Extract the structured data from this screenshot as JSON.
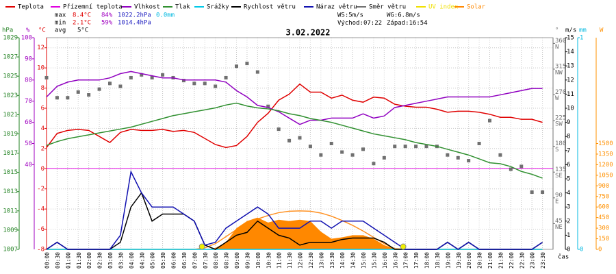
{
  "chart_data": {
    "type": "line",
    "title": "3.02.2022",
    "x_axis_label": "čas",
    "categories": [
      "00:00",
      "00:30",
      "01:00",
      "01:30",
      "02:00",
      "02:30",
      "03:00",
      "03:30",
      "04:00",
      "04:30",
      "05:00",
      "05:30",
      "06:00",
      "06:30",
      "07:00",
      "07:30",
      "08:00",
      "08:30",
      "09:00",
      "09:30",
      "10:00",
      "10:30",
      "11:00",
      "11:30",
      "12:00",
      "12:30",
      "13:00",
      "13:30",
      "14:00",
      "14:30",
      "15:00",
      "15:30",
      "16:00",
      "16:30",
      "17:00",
      "17:30",
      "18:00",
      "18:30",
      "19:00",
      "19:30",
      "20:00",
      "20:30",
      "21:00",
      "21:30",
      "22:00",
      "22:30",
      "23:00",
      "23:30"
    ],
    "axes": {
      "press": {
        "unit": "hPa",
        "color": "#208020",
        "lim": [
          1007,
          1029
        ],
        "ticks": [
          1007,
          1009,
          1011,
          1013,
          1015,
          1017,
          1019,
          1021,
          1023,
          1025,
          1027,
          1029
        ]
      },
      "hum": {
        "unit": "%",
        "color": "#a000c0",
        "lim": [
          0,
          100
        ],
        "ticks": [
          40,
          50,
          60,
          70,
          80,
          90,
          100
        ]
      },
      "temp": {
        "unit": "°C",
        "color": "#e00000",
        "lim": [
          -8,
          13
        ],
        "ticks": [
          -8,
          -6,
          -4,
          -2,
          0,
          2,
          4,
          6,
          8,
          10,
          12
        ]
      },
      "dir": {
        "unit": "°",
        "color": "#707070",
        "lim": [
          0,
          370
        ],
        "ticks": [
          45,
          90,
          135,
          180,
          225,
          270,
          315,
          360
        ],
        "tick_names": [
          "NE",
          "E",
          "SE",
          "S",
          "SW",
          "W",
          "NW",
          "N"
        ]
      },
      "wind": {
        "unit": "m/s",
        "color": "#000000",
        "lim": [
          0,
          15
        ],
        "ticks": [
          0,
          1,
          2,
          3,
          4,
          5,
          6,
          7,
          8,
          9,
          10,
          11,
          12,
          13,
          14,
          15
        ]
      },
      "mm": {
        "unit": "mm",
        "color": "#00b8e0",
        "lim": [
          0,
          1
        ],
        "ticks": [
          0,
          1
        ]
      },
      "solar": {
        "unit": "W",
        "color": "#ff9000",
        "lim": [
          0,
          3000
        ],
        "ticks": [
          0,
          150,
          300,
          450,
          600,
          750,
          900,
          1050,
          1200,
          1350,
          1500
        ]
      }
    },
    "zero_line": {
      "value": 0,
      "axis": "temp",
      "color": "#e000e0"
    },
    "grid": true,
    "series": [
      {
        "name": "Teplota",
        "color": "#e00000",
        "axis": "temp",
        "style": "line",
        "values": [
          2.1,
          3.5,
          3.8,
          3.9,
          3.8,
          3.2,
          2.6,
          3.6,
          3.9,
          3.8,
          3.8,
          3.9,
          3.7,
          3.8,
          3.6,
          3.0,
          2.4,
          2.1,
          2.3,
          3.2,
          4.6,
          5.5,
          6.8,
          7.4,
          8.4,
          7.6,
          7.6,
          7.0,
          7.3,
          6.8,
          6.6,
          7.1,
          7.0,
          6.4,
          6.2,
          6.1,
          6.1,
          5.9,
          5.6,
          5.7,
          5.7,
          5.6,
          5.4,
          5.1,
          5.1,
          4.9,
          4.9,
          4.6
        ]
      },
      {
        "name": "Přízemní teplota",
        "color": "#e000e0"
      },
      {
        "name": "Vlhkost",
        "color": "#9000c0",
        "axis": "hum",
        "style": "line",
        "values": [
          72,
          77,
          79,
          80,
          80,
          80,
          81,
          83,
          84,
          83,
          82,
          81,
          81,
          80,
          80,
          80,
          80,
          79,
          75,
          72,
          68,
          67,
          65,
          62,
          59,
          61,
          61,
          62,
          62,
          62,
          64,
          62,
          63,
          67,
          68,
          69,
          70,
          71,
          72,
          72,
          72,
          72,
          72,
          73,
          74,
          75,
          76,
          76
        ]
      },
      {
        "name": "Tlak",
        "color": "#309030",
        "axis": "press",
        "style": "line",
        "values": [
          1017.8,
          1018.2,
          1018.5,
          1018.7,
          1018.9,
          1019.1,
          1019.3,
          1019.5,
          1019.7,
          1020.0,
          1020.3,
          1020.6,
          1020.9,
          1021.1,
          1021.3,
          1021.5,
          1021.7,
          1022.0,
          1022.2,
          1021.9,
          1021.7,
          1021.6,
          1021.4,
          1021.1,
          1020.9,
          1020.6,
          1020.4,
          1020.2,
          1019.9,
          1019.6,
          1019.3,
          1019.0,
          1018.8,
          1018.6,
          1018.4,
          1018.1,
          1017.9,
          1017.7,
          1017.4,
          1017.1,
          1016.8,
          1016.4,
          1016.0,
          1015.9,
          1015.6,
          1015.1,
          1014.8,
          1014.4
        ]
      },
      {
        "name": "Srážky",
        "color": "#00c8e8",
        "axis": "mm",
        "style": "line",
        "values": [
          0,
          0,
          0,
          0,
          0,
          0,
          0,
          0,
          0,
          0,
          0,
          0,
          0,
          0,
          0,
          0,
          0,
          0,
          0,
          0,
          0,
          0,
          0,
          0,
          0,
          0,
          0,
          0,
          0,
          0,
          0,
          0,
          0,
          0,
          0,
          0,
          0,
          0,
          0,
          0,
          0,
          0,
          0,
          0,
          0,
          0,
          0,
          0
        ]
      },
      {
        "name": "Rychlost větru",
        "color": "#000000",
        "axis": "wind",
        "style": "line",
        "values": [
          0,
          0.5,
          0,
          0,
          0,
          0,
          0,
          0.5,
          3,
          4,
          2,
          2.5,
          2.5,
          2.5,
          2,
          0.3,
          0,
          0.5,
          1,
          1.2,
          2,
          1.5,
          1,
          0.8,
          0.3,
          0.5,
          0.5,
          0.5,
          0.7,
          0.8,
          0.8,
          0.8,
          0.5,
          0,
          0,
          0,
          0,
          0,
          0.5,
          0,
          0.5,
          0,
          0,
          0,
          0,
          0,
          0,
          0.5
        ]
      },
      {
        "name": "Náraz větru",
        "color": "#1010b0",
        "axis": "wind",
        "style": "line",
        "values": [
          0,
          0.5,
          0,
          0,
          0,
          0,
          0,
          1,
          5.5,
          4,
          3,
          3,
          3,
          2.5,
          2,
          0.3,
          0.5,
          1.5,
          2,
          2.5,
          3,
          2.5,
          1.5,
          1.5,
          1.5,
          2,
          2,
          1.5,
          2,
          2,
          2,
          1.5,
          1,
          0.5,
          0,
          0,
          0,
          0,
          0.5,
          0,
          0.5,
          0,
          0,
          0,
          0,
          0,
          0,
          0.5
        ]
      },
      {
        "name": "Směr větru",
        "color": "#707070",
        "axis": "dir",
        "style": "squares",
        "values": [
          300,
          265,
          265,
          275,
          270,
          280,
          290,
          285,
          300,
          305,
          300,
          305,
          300,
          295,
          290,
          290,
          285,
          300,
          320,
          325,
          310,
          250,
          210,
          190,
          195,
          180,
          165,
          185,
          170,
          165,
          175,
          150,
          160,
          180,
          180,
          180,
          180,
          180,
          165,
          160,
          155,
          185,
          225,
          165,
          140,
          145,
          100,
          100
        ]
      },
      {
        "name": "UV index",
        "color": "#f0e000",
        "label_colored": true
      },
      {
        "name": "Solar",
        "color": "#ff8800",
        "axis": "solar",
        "style": "area",
        "label_colored": true,
        "values": [
          0,
          0,
          0,
          0,
          0,
          0,
          0,
          0,
          0,
          0,
          0,
          0,
          0,
          0,
          0,
          0,
          20,
          100,
          300,
          400,
          450,
          380,
          420,
          400,
          420,
          400,
          250,
          150,
          170,
          200,
          200,
          150,
          60,
          10,
          0,
          0,
          0,
          0,
          0,
          0,
          0,
          0,
          0,
          0,
          0,
          0,
          0,
          0
        ]
      }
    ],
    "solar_clear_sky": {
      "color": "#ff9020",
      "axis": "solar",
      "values": [
        0,
        0,
        0,
        0,
        0,
        0,
        0,
        0,
        0,
        0,
        0,
        0,
        0,
        0,
        0,
        20,
        80,
        180,
        280,
        360,
        430,
        480,
        520,
        540,
        545,
        540,
        515,
        470,
        410,
        340,
        260,
        170,
        80,
        10,
        0,
        0,
        0,
        0,
        0,
        0,
        0,
        0,
        0,
        0,
        0,
        0,
        0,
        0
      ]
    },
    "stats": {
      "max": {
        "label": "max",
        "temp": "8.4°C",
        "hum": "84%",
        "press": "1022.2hPa",
        "rain": "0.0mm"
      },
      "min": {
        "label": "min",
        "temp": "2.1°C",
        "hum": "59%",
        "press": "1014.4hPa"
      },
      "avg": {
        "label": "avg",
        "temp": "5°C"
      }
    },
    "wind_info": {
      "ws": "WS:5m/s",
      "wg": "WG:6.8m/s"
    },
    "sun": {
      "sunrise_label": "Východ:",
      "sunrise": "07:22",
      "sunset_label": "Západ:",
      "sunset": "16:54",
      "color": "#f0f000"
    }
  }
}
